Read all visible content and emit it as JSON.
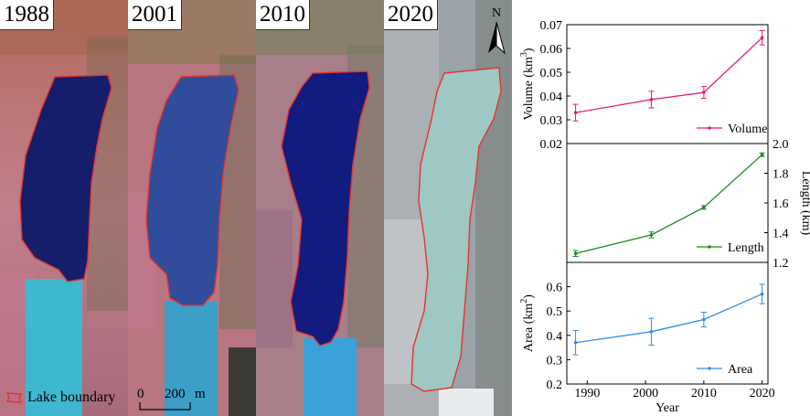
{
  "map_panels": [
    {
      "year": "1988"
    },
    {
      "year": "2001"
    },
    {
      "year": "2010"
    },
    {
      "year": "2020"
    }
  ],
  "north_arrow": {
    "label": "N",
    "icon": "north-arrow-icon"
  },
  "legend": {
    "label": "Lake boundary",
    "icon": "lake-boundary-icon",
    "boundary_color": "#e8322e"
  },
  "scale_bar": {
    "zero": "0",
    "value": "200",
    "unit": "m"
  },
  "chart_data": [
    {
      "type": "line",
      "x": [
        1988,
        2001,
        2010,
        2020
      ],
      "series": [
        {
          "name": "Volume",
          "values": [
            0.033,
            0.0385,
            0.0415,
            0.0645
          ],
          "errors": [
            0.0035,
            0.0035,
            0.0025,
            0.003
          ],
          "color": "#e6197b"
        }
      ],
      "ylabel_main": "Volume (km",
      "ylabel_sup": "3",
      "ylabel_end": ")",
      "ylim": [
        0.02,
        0.07
      ],
      "yticks": [
        0.02,
        0.03,
        0.04,
        0.05,
        0.06,
        0.07
      ],
      "ytick_labels": [
        "0.02",
        "0.03",
        "0.04",
        "0.05",
        "0.06",
        "0.07"
      ],
      "yaxis_side": "left",
      "legend_position": "bottom-right"
    },
    {
      "type": "line",
      "x": [
        1988,
        2001,
        2010,
        2020
      ],
      "series": [
        {
          "name": "Length",
          "values": [
            1.26,
            1.385,
            1.57,
            1.925
          ],
          "errors": [
            0.02,
            0.02,
            0.012,
            0.012
          ],
          "color": "#1c8a1c"
        }
      ],
      "ylabel": "Length (km)",
      "ylim": [
        1.2,
        2.0
      ],
      "yticks": [
        1.2,
        1.4,
        1.6,
        1.8,
        2.0
      ],
      "ytick_labels": [
        "1.2",
        "1.4",
        "1.6",
        "1.8",
        "2.0"
      ],
      "yaxis_side": "right",
      "legend_position": "bottom-right"
    },
    {
      "type": "line",
      "x": [
        1988,
        2001,
        2010,
        2020
      ],
      "series": [
        {
          "name": "Area",
          "values": [
            0.37,
            0.415,
            0.465,
            0.57
          ],
          "errors": [
            0.05,
            0.055,
            0.03,
            0.04
          ],
          "color": "#2f8ee6"
        }
      ],
      "ylabel_main": "Area (km",
      "ylabel_sup": "2",
      "ylabel_end": ")",
      "ylim": [
        0.2,
        0.7
      ],
      "yticks": [
        0.2,
        0.3,
        0.4,
        0.5,
        0.6,
        0.7
      ],
      "ytick_labels": [
        "0.2",
        "0.3",
        "0.4",
        "0.5",
        "0.6",
        "0.7"
      ],
      "yaxis_side": "left",
      "legend_position": "bottom-right"
    }
  ],
  "shared_xaxis": {
    "label": "Year",
    "xlim": [
      1986.5,
      2021
    ],
    "ticks": [
      1990,
      2000,
      2010,
      2020
    ],
    "tick_labels": [
      "1990",
      "2000",
      "2010",
      "2020"
    ]
  }
}
